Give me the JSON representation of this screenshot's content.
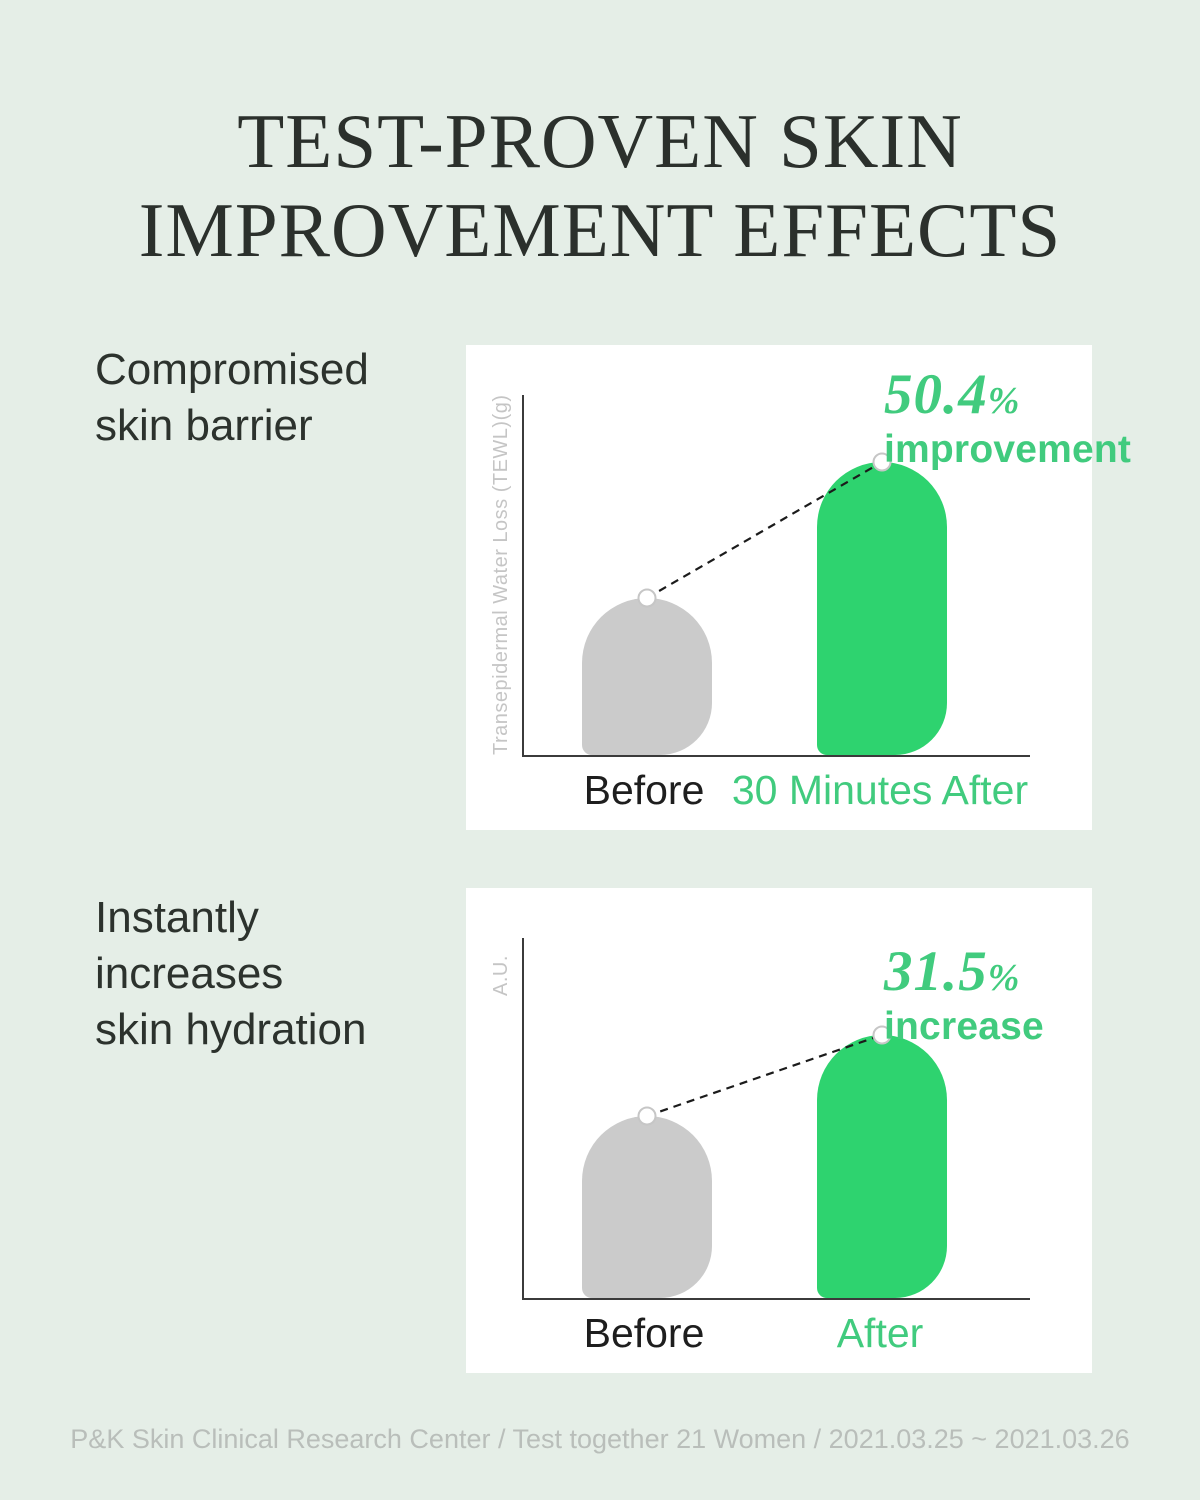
{
  "title": {
    "line1": "TEST-PROVEN SKIN",
    "line2": "IMPROVEMENT EFFECTS"
  },
  "footer": "P&K Skin Clinical Research Center / Test together 21 Women / 2021.03.25 ~ 2021.03.26",
  "colors": {
    "background": "#e5eee7",
    "card": "#ffffff",
    "green_bar": "#2ed36f",
    "green_text": "#41cb7e",
    "gray_bar": "#cbcbcb",
    "axis": "#3b3b3b",
    "dark_text": "#2b302c",
    "heading_text": "#2c322d",
    "muted_text": "#c5c5c5",
    "footer_text": "#b9beba",
    "connector": "#1b1b1b",
    "marker_stroke": "#c6c6c6",
    "category_before": "#1e1e1e"
  },
  "chart_data": [
    {
      "type": "bar",
      "section_heading_lines": [
        "Compromised",
        "skin barrier"
      ],
      "ylabel": "Transepidermal Water Loss (TEWL)(g)",
      "categories": [
        "Before",
        "30 Minutes After"
      ],
      "values_pct_of_axis_height": [
        43.5,
        81.5
      ],
      "bar_colors": [
        "#cbcbcb",
        "#2ed36f"
      ],
      "category_label_colors": [
        "#1e1e1e",
        "#41cb7e"
      ],
      "annotation": {
        "value_number": "50.4",
        "value_suffix": "%",
        "label": "improvement"
      },
      "notes": "No numeric axis scale (arbitrary units); dashed connector line with white circular markers joins the two bar tops; legend: none; grid: off"
    },
    {
      "type": "bar",
      "section_heading_lines": [
        "Instantly",
        "increases",
        "skin hydration"
      ],
      "ylabel": "A.U.",
      "categories": [
        "Before",
        "After"
      ],
      "values_pct_of_axis_height": [
        50.5,
        73.0
      ],
      "bar_colors": [
        "#cbcbcb",
        "#2ed36f"
      ],
      "category_label_colors": [
        "#1e1e1e",
        "#41cb7e"
      ],
      "annotation": {
        "value_number": "31.5",
        "value_suffix": "%",
        "label": "increase"
      },
      "notes": "No numeric axis scale (arbitrary units); dashed connector line with white circular markers joins the two bar tops; legend: none; grid: off"
    }
  ]
}
